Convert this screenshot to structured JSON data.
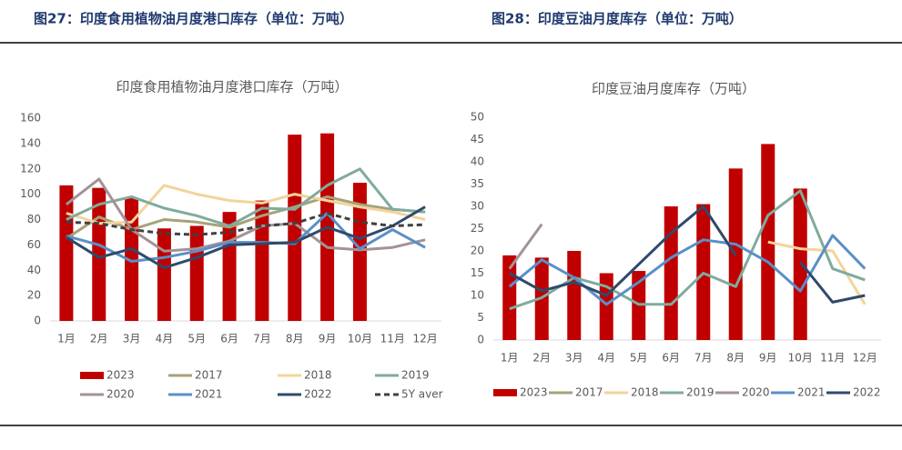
{
  "captions": [
    "图27：印度食用植物油月度港口库存（单位：万吨）",
    "图28：印度豆油月度库存（单位：万吨）"
  ],
  "chart_data": [
    {
      "type": "bar",
      "title": "印度食用植物油月度港口库存（万吨）",
      "categories": [
        "1月",
        "2月",
        "3月",
        "4月",
        "5月",
        "6月",
        "7月",
        "8月",
        "9月",
        "10月",
        "11月",
        "12月"
      ],
      "ylim": [
        0,
        160
      ],
      "yticks": [
        0,
        20,
        40,
        60,
        80,
        100,
        120,
        140,
        160
      ],
      "series": [
        {
          "name": "2023",
          "type": "bar",
          "color": "#c00000",
          "values": [
            107,
            105,
            97,
            73,
            75,
            86,
            95,
            147,
            148,
            109,
            null,
            null
          ]
        },
        {
          "name": "2017",
          "type": "line",
          "color": "#a5a27a",
          "values": [
            65,
            82,
            72,
            80,
            78,
            74,
            83,
            90,
            98,
            92,
            88,
            86
          ]
        },
        {
          "name": "2018",
          "type": "line",
          "color": "#f2d49b",
          "values": [
            85,
            77,
            78,
            107,
            100,
            95,
            93,
            100,
            95,
            90,
            86,
            80
          ]
        },
        {
          "name": "2019",
          "type": "line",
          "color": "#7fab9d",
          "values": [
            80,
            92,
            98,
            89,
            83,
            75,
            89,
            88,
            107,
            120,
            88,
            86
          ]
        },
        {
          "name": "2020",
          "type": "line",
          "color": "#a39297",
          "values": [
            92,
            112,
            72,
            55,
            57,
            63,
            75,
            77,
            58,
            56,
            58,
            64
          ]
        },
        {
          "name": "2021",
          "type": "line",
          "color": "#5b8fc7",
          "values": [
            67,
            60,
            47,
            50,
            55,
            62,
            62,
            61,
            85,
            57,
            72,
            58
          ]
        },
        {
          "name": "2022",
          "type": "line",
          "color": "#2e4a6b",
          "values": [
            66,
            50,
            57,
            42,
            50,
            60,
            61,
            62,
            74,
            65,
            75,
            90
          ]
        },
        {
          "name": "5Y aver",
          "type": "line",
          "dashed": true,
          "color": "#404040",
          "values": [
            78,
            77,
            72,
            69,
            68,
            70,
            75,
            77,
            85,
            78,
            75,
            76
          ]
        }
      ]
    },
    {
      "type": "bar",
      "title": "印度豆油月度库存（万吨）",
      "categories": [
        "1月",
        "2月",
        "3月",
        "4月",
        "5月",
        "6月",
        "7月",
        "8月",
        "9月",
        "10月",
        "11月",
        "12月"
      ],
      "ylim": [
        0,
        50
      ],
      "yticks": [
        0,
        5,
        10,
        15,
        20,
        25,
        30,
        35,
        40,
        45,
        50
      ],
      "series": [
        {
          "name": "2023",
          "type": "bar",
          "color": "#c00000",
          "values": [
            19,
            18.5,
            20,
            15,
            15.5,
            30,
            30.5,
            38.5,
            44,
            34,
            null,
            null
          ]
        },
        {
          "name": "2017",
          "type": "line",
          "color": "#a5a27a",
          "values": [
            null,
            null,
            null,
            null,
            null,
            null,
            null,
            null,
            null,
            null,
            null,
            null
          ]
        },
        {
          "name": "2018",
          "type": "line",
          "color": "#f2d49b",
          "values": [
            null,
            null,
            null,
            null,
            null,
            null,
            null,
            null,
            22,
            20.5,
            20,
            8
          ]
        },
        {
          "name": "2019",
          "type": "line",
          "color": "#7fab9d",
          "values": [
            7,
            9.5,
            14,
            12,
            8,
            8,
            15,
            12,
            28,
            33.5,
            16,
            13.5
          ]
        },
        {
          "name": "2020",
          "type": "line",
          "color": "#a39297",
          "values": [
            16,
            26,
            null,
            null,
            null,
            null,
            null,
            null,
            null,
            null,
            null,
            null
          ]
        },
        {
          "name": "2021",
          "type": "line",
          "color": "#5b8fc7",
          "values": [
            12,
            18,
            14,
            8,
            13,
            18.5,
            22.5,
            21.5,
            17.5,
            11,
            23.5,
            16
          ]
        },
        {
          "name": "2022",
          "type": "line",
          "color": "#2e4a6b",
          "values": [
            15,
            11,
            13,
            10,
            17,
            24,
            30,
            19,
            null,
            17.5,
            8.5,
            10
          ]
        }
      ]
    }
  ]
}
